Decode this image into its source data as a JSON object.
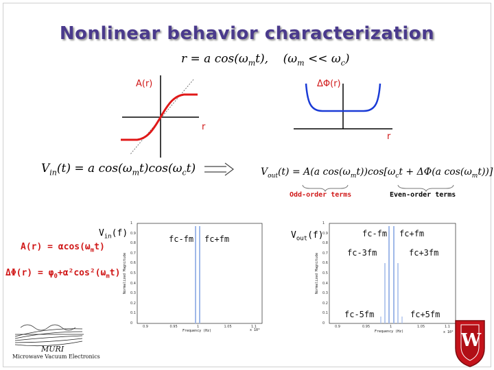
{
  "title": "Nonlinear behavior characterization",
  "eq_top": "r = a cos(ω_m t),   (ω_m << ω_c)",
  "eq_vin": "V_in(t) = a cos(ω_m t)cos(ω_c t)",
  "eq_vout": "V_out(t) = A(a cos(ω_m t))cos[ω_c t + ΔΦ(a cos(ω_m t))]",
  "am_label": "A(r)",
  "pm_label": "ΔΦ(r)",
  "r_label_1": "r",
  "r_label_2": "r",
  "odd_terms": "Odd-order terms",
  "even_terms": "Even-order terms",
  "vin_f": "V_in(f)",
  "vout_f": "V_out(f)",
  "a_r_eq": "A(r) = αcos(ω_m t)",
  "dphi_eq": "ΔΦ(r) = φ₀+α²cos²(ω_m t)",
  "spec_in": {
    "fc_minus_fm": "fc-fm",
    "fc_plus_fm": "fc+fm",
    "ylabel": "Normalized Magnitude",
    "xlabel": "Frequency (Hz)",
    "exp": "x 10⁹",
    "yticks": [
      "1",
      "0.9",
      "0.8",
      "0.7",
      "0.6",
      "0.5",
      "0.4",
      "0.3",
      "0.2",
      "0.1",
      "0"
    ],
    "xticks": [
      "0.9",
      "0.95",
      "1",
      "1.05",
      "1.1"
    ]
  },
  "spec_out": {
    "fc_minus_fm": "fc-fm",
    "fc_plus_fm": "fc+fm",
    "fc_minus_3fm": "fc-3fm",
    "fc_plus_3fm": "fc+3fm",
    "fc_minus_5fm": "fc-5fm",
    "fc_plus_5fm": "fc+5fm",
    "ylabel": "Normalized Magnitude",
    "xlabel": "Frequency (Hz)",
    "exp": "x 10⁹",
    "yticks": [
      "1",
      "0.9",
      "0.8",
      "0.7",
      "0.6",
      "0.5",
      "0.4",
      "0.3",
      "0.2",
      "0.1",
      "0"
    ],
    "xticks": [
      "0.9",
      "0.95",
      "1",
      "1.05",
      "1.1"
    ]
  },
  "logo": {
    "line1": "MURI",
    "line2": "Microwave Vacuum Electronics"
  },
  "crest_letter": "W",
  "colors": {
    "title": "#4a3a8c",
    "red": "#d01818",
    "spectral": "#9fb8e8"
  }
}
